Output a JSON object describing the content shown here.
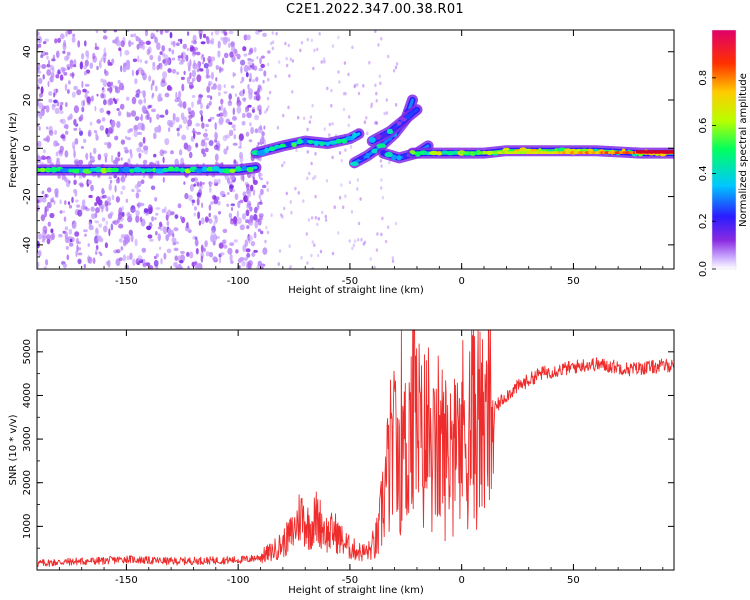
{
  "title": "C2E1.2022.347.00.38.R01",
  "chart_data": [
    {
      "type": "heatmap",
      "name": "spectrogram",
      "xlabel": "Height of straight line (km)",
      "ylabel": "Frequency (Hz)",
      "xlim": [
        -190,
        95
      ],
      "ylim": [
        -50,
        49
      ],
      "xticks": [
        -150,
        -100,
        -50,
        0,
        50
      ],
      "yticks": [
        -40,
        -20,
        0,
        20,
        40
      ],
      "ytick_labels": [
        "-40",
        "-20",
        "0",
        "20",
        "40"
      ],
      "colorbar": {
        "label": "Normalized spectral amplitude",
        "range": [
          0,
          1
        ],
        "ticks": [
          0.0,
          0.2,
          0.4,
          0.6,
          0.8
        ],
        "tick_labels": [
          "0.0",
          "0.2",
          "0.4",
          "0.6",
          "0.8"
        ],
        "colors": [
          "#ffffff",
          "#c9a8ff",
          "#8a2be2",
          "#2a1cff",
          "#00c8ff",
          "#00ff60",
          "#b8ff00",
          "#ffcc00",
          "#ff3000",
          "#e0006a"
        ]
      },
      "traces": [
        {
          "x": [
            -190,
            -160,
            -130,
            -100,
            -92
          ],
          "y": [
            -9,
            -9,
            -9,
            -9,
            -8
          ],
          "amp": 0.4
        },
        {
          "x": [
            -92,
            -80,
            -70,
            -60,
            -50,
            -46
          ],
          "y": [
            -2,
            1,
            3,
            2,
            4,
            6
          ],
          "amp": 0.35
        },
        {
          "x": [
            -48,
            -42,
            -36,
            -30,
            -25,
            -22
          ],
          "y": [
            -6,
            -3,
            1,
            6,
            12,
            20
          ],
          "amp": 0.3
        },
        {
          "x": [
            -40,
            -32,
            -28,
            -24,
            -20
          ],
          "y": [
            3,
            7,
            10,
            13,
            16
          ],
          "amp": 0.25
        },
        {
          "x": [
            -35,
            -28,
            -20,
            -15
          ],
          "y": [
            -2,
            -4,
            -2,
            1
          ],
          "amp": 0.3
        },
        {
          "x": [
            -22,
            -10,
            0,
            10,
            20,
            40,
            60,
            80,
            95
          ],
          "y": [
            -2,
            -2,
            -2,
            -2,
            -1,
            -1,
            -1,
            -2,
            -2
          ],
          "amp": 0.55
        }
      ]
    },
    {
      "type": "line",
      "name": "snr",
      "xlabel": "Height of straight line (km)",
      "ylabel": "SNR (10 * v/v)",
      "xlim": [
        -190,
        95
      ],
      "ylim": [
        0,
        5500
      ],
      "xticks": [
        -150,
        -100,
        -50,
        0,
        50
      ],
      "yticks": [
        1000,
        2000,
        3000,
        4000,
        5000
      ],
      "color": "#ee2c2c",
      "x": [
        -190,
        -180,
        -170,
        -160,
        -150,
        -140,
        -130,
        -120,
        -110,
        -100,
        -95,
        -90,
        -85,
        -80,
        -75,
        -72,
        -70,
        -68,
        -65,
        -62,
        -60,
        -57,
        -55,
        -52,
        -50,
        -47,
        -45,
        -42,
        -40,
        -37,
        -35,
        -33,
        -31,
        -29,
        -27,
        -25,
        -23,
        -21,
        -20,
        -18,
        -15,
        -12,
        -10,
        -7,
        -5,
        -3,
        0,
        3,
        5,
        8,
        10,
        12,
        15,
        18,
        20,
        25,
        30,
        35,
        40,
        45,
        50,
        55,
        60,
        65,
        70,
        75,
        80,
        85,
        90,
        95
      ],
      "y": [
        150,
        180,
        200,
        210,
        250,
        220,
        200,
        210,
        220,
        230,
        250,
        300,
        420,
        600,
        900,
        1300,
        1100,
        950,
        1200,
        1000,
        800,
        900,
        750,
        600,
        500,
        450,
        400,
        420,
        500,
        800,
        1700,
        2200,
        2800,
        2400,
        3200,
        2600,
        3600,
        2900,
        3500,
        2800,
        3200,
        2400,
        3000,
        2600,
        2900,
        2700,
        3100,
        3300,
        3600,
        3400,
        3000,
        3400,
        3700,
        3900,
        4000,
        4200,
        4350,
        4500,
        4550,
        4600,
        4650,
        4700,
        4720,
        4680,
        4650,
        4600,
        4630,
        4650,
        4680,
        4700
      ]
    }
  ]
}
